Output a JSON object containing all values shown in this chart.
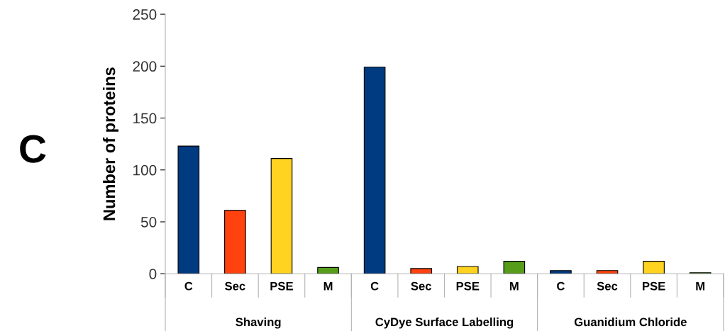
{
  "chart_data": {
    "type": "bar",
    "ylabel": "Number of proteins",
    "categories": [
      "C",
      "Sec",
      "PSE",
      "M",
      "C",
      "Sec",
      "PSE",
      "M",
      "C",
      "Sec",
      "PSE",
      "M"
    ],
    "values": [
      123,
      61,
      111,
      6,
      199,
      5,
      7,
      12,
      3,
      3,
      12,
      1
    ],
    "colors": [
      "#003a80",
      "#ff420e",
      "#ffd320",
      "#579d1c",
      "#003a80",
      "#ff420e",
      "#ffd320",
      "#579d1c",
      "#003a80",
      "#ff420e",
      "#ffd320",
      "#579d1c"
    ],
    "ylim": [
      0,
      250
    ],
    "yticks": [
      0,
      50,
      100,
      150,
      200,
      250
    ],
    "grid": false,
    "legend": false,
    "annotations": [
      "C",
      "Shaving",
      "CyDye Surface Labelling",
      "Guanidium Chloride"
    ]
  }
}
